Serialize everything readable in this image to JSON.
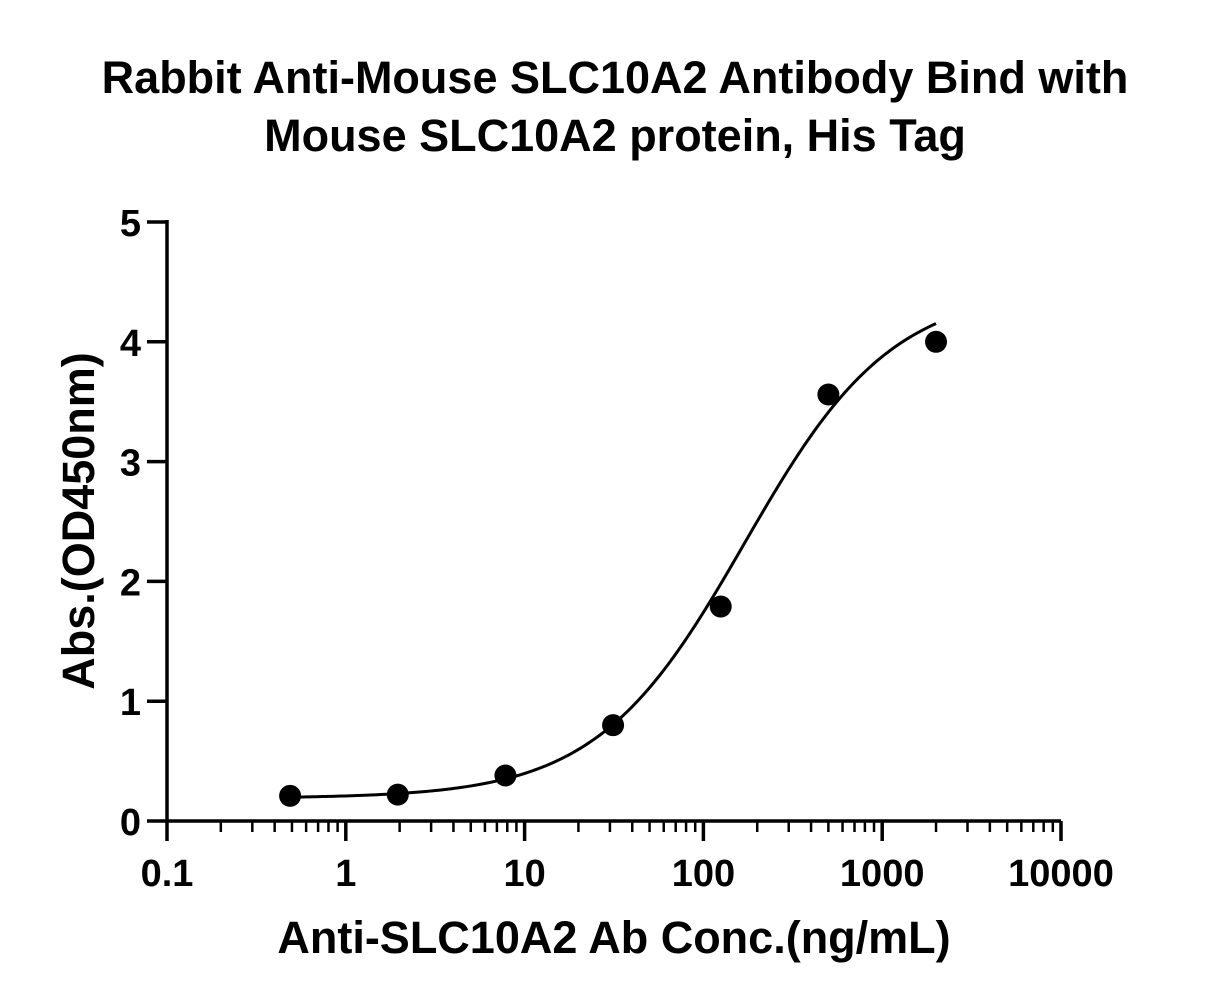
{
  "chart_data": {
    "type": "scatter",
    "title_lines": [
      "Rabbit Anti-Mouse SLC10A2 Antibody Bind with",
      "Mouse SLC10A2 protein, His Tag"
    ],
    "xlabel": "Anti-SLC10A2 Ab Conc.(ng/mL)",
    "ylabel": "Abs.(OD450nm)",
    "x_scale": "log",
    "xlim": [
      0.1,
      10000
    ],
    "ylim": [
      0,
      5
    ],
    "x_ticks": [
      "0.1",
      "1",
      "10",
      "100",
      "1000",
      "10000"
    ],
    "y_ticks": [
      "0",
      "1",
      "2",
      "3",
      "4",
      "5"
    ],
    "grid": false,
    "legend": "none",
    "series": [
      {
        "x": [
          0.488,
          1.953,
          7.813,
          31.25,
          125,
          500,
          2000
        ],
        "y": [
          0.21,
          0.22,
          0.38,
          0.8,
          1.79,
          3.56,
          4.0
        ]
      }
    ],
    "fit_curve": {
      "model": "4PL",
      "bottom": 0.19,
      "top": 4.45,
      "ec50": 170,
      "hill": 1.05,
      "x_range": [
        0.488,
        2000
      ]
    },
    "marker_color": "#000000",
    "line_color": "#000000"
  }
}
